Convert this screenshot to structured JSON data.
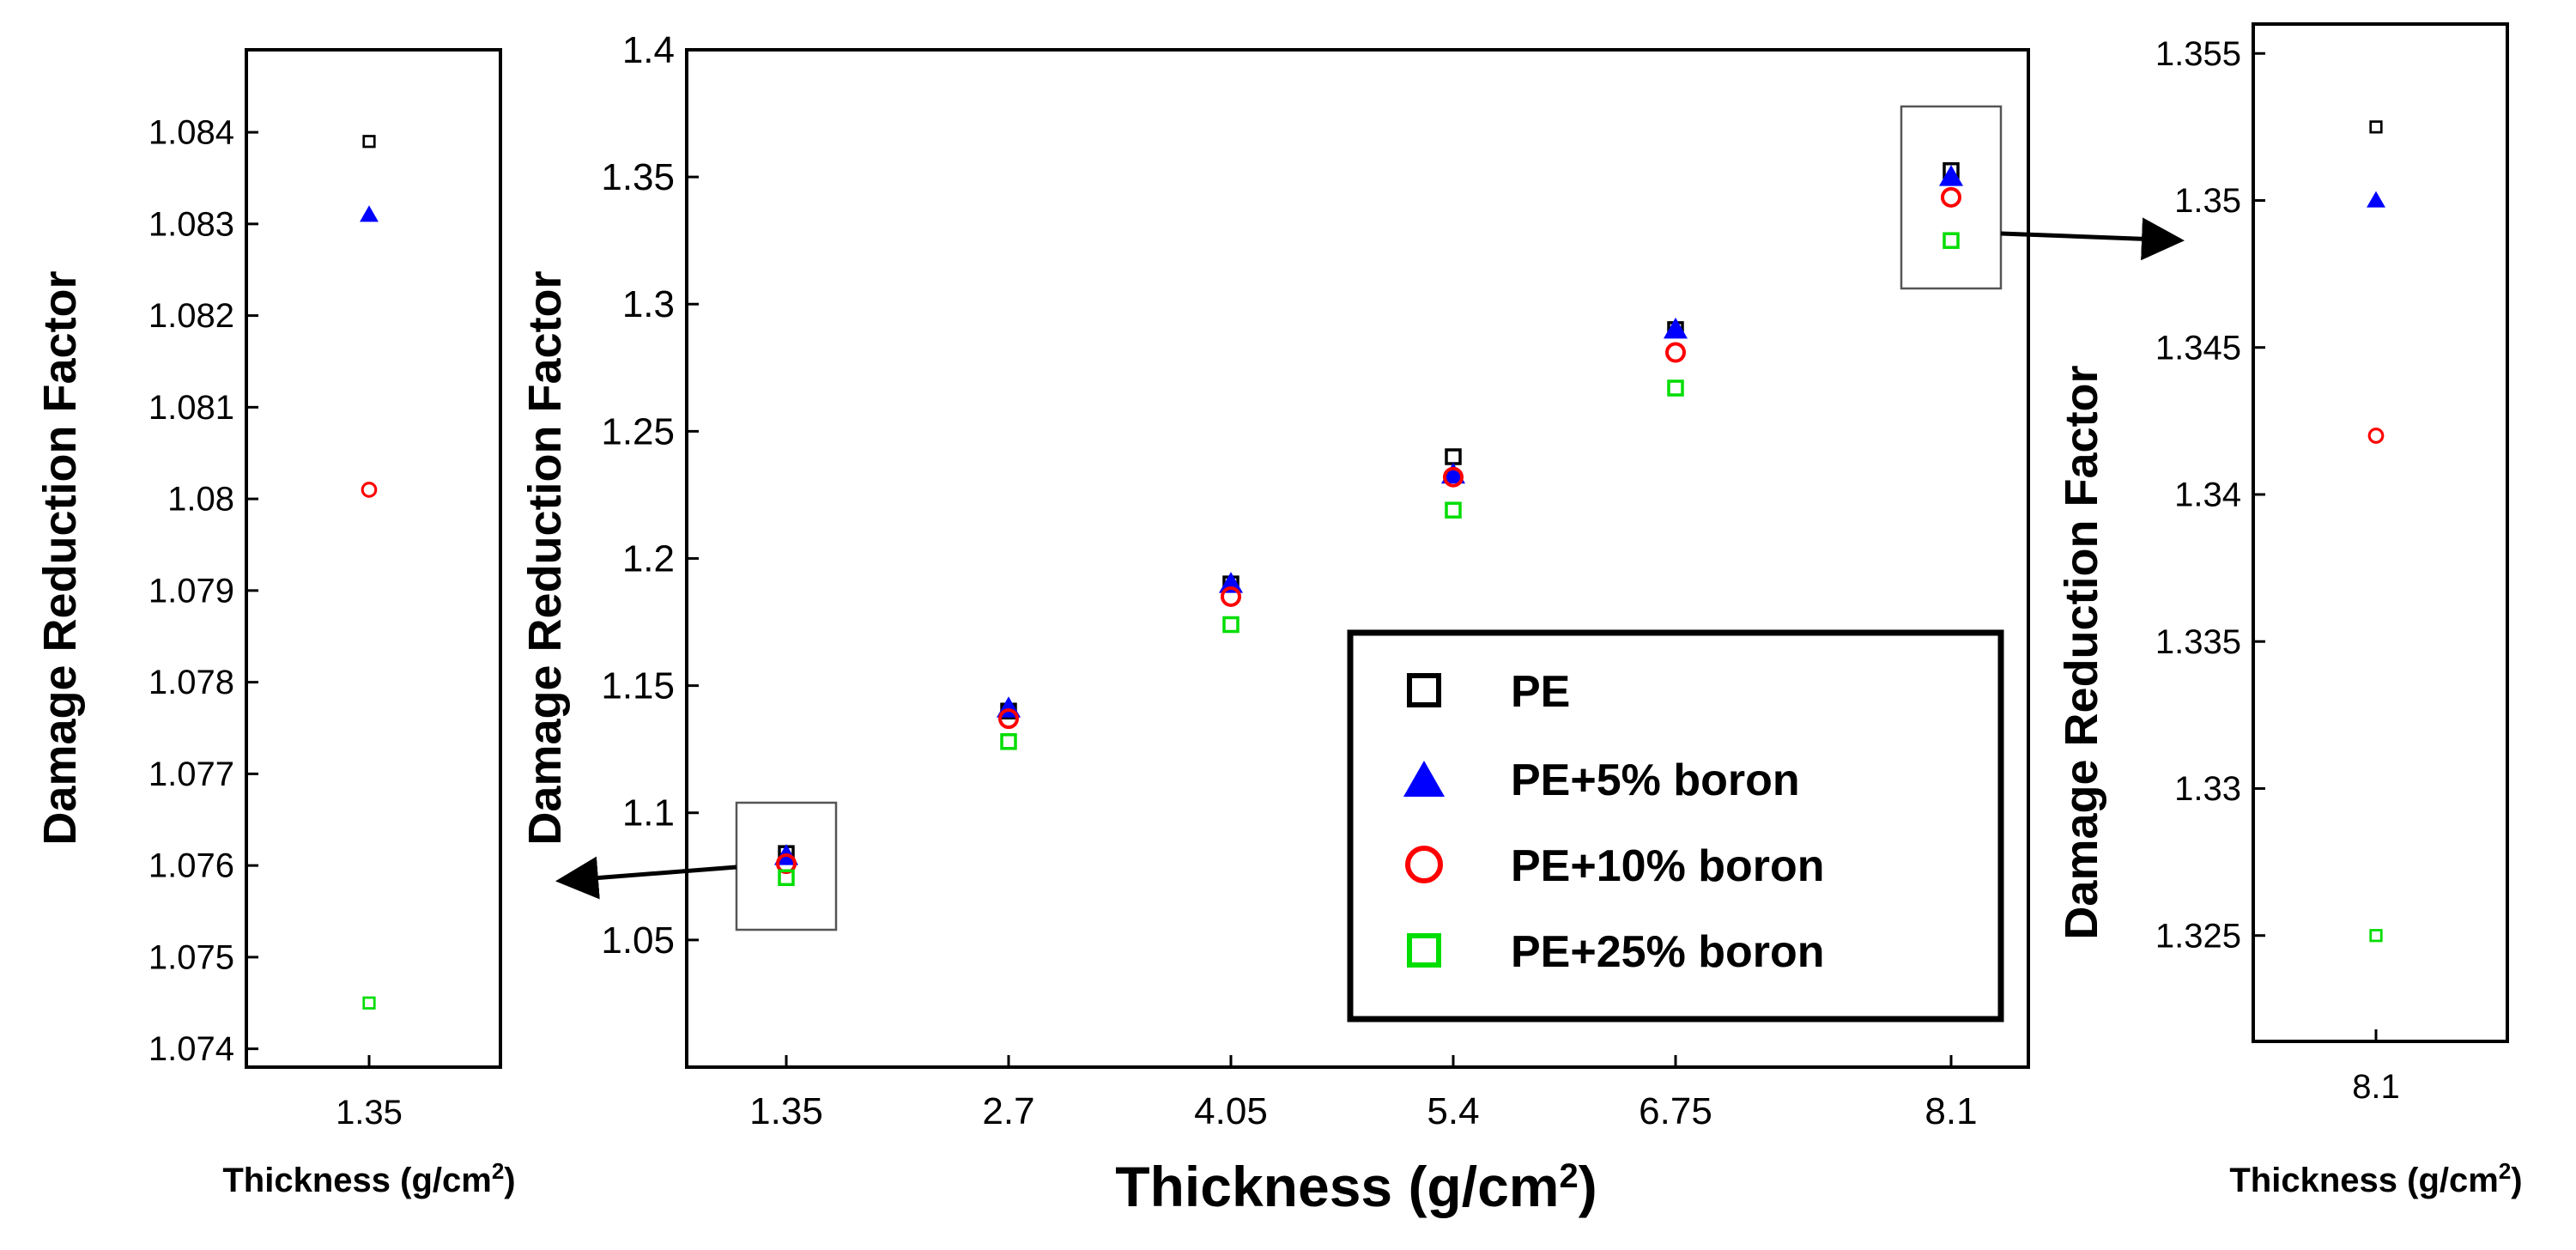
{
  "chart_data": [
    {
      "id": "left-inset",
      "type": "scatter",
      "title": "",
      "xlabel": "Thickness (g/cm",
      "xlabel_sup": "2",
      "xlabel_close": ")",
      "ylabel": "Damage Reduction Factor",
      "categories": [
        "1.35"
      ],
      "ylim": [
        1.0738,
        1.0849
      ],
      "yticks": [
        "1.074",
        "1.075",
        "1.076",
        "1.077",
        "1.078",
        "1.079",
        "1.08",
        "1.081",
        "1.082",
        "1.083",
        "1.084"
      ],
      "series": [
        {
          "name": "PE",
          "values": [
            1.0839
          ]
        },
        {
          "name": "PE+5% boron",
          "values": [
            1.0831
          ]
        },
        {
          "name": "PE+10% boron",
          "values": [
            1.0801
          ]
        },
        {
          "name": "PE+25% boron",
          "values": [
            1.0745
          ]
        }
      ]
    },
    {
      "id": "main",
      "type": "scatter",
      "title": "",
      "xlabel": "Thickness (g/cm",
      "xlabel_sup": "2",
      "xlabel_close": ")",
      "ylabel": "Damage Reduction Factor",
      "categories": [
        "1.35",
        "2.7",
        "4.05",
        "5.4",
        "6.75",
        "8.1"
      ],
      "ylim": [
        1.0,
        1.4
      ],
      "yticks": [
        "1.05",
        "1.1",
        "1.15",
        "1.2",
        "1.25",
        "1.3",
        "1.35",
        "1.4"
      ],
      "series": [
        {
          "name": "PE",
          "values": [
            1.084,
            1.14,
            1.19,
            1.24,
            1.29,
            1.3525
          ]
        },
        {
          "name": "PE+5% boron",
          "values": [
            1.083,
            1.141,
            1.19,
            1.233,
            1.29,
            1.35
          ]
        },
        {
          "name": "PE+10% boron",
          "values": [
            1.08,
            1.137,
            1.185,
            1.232,
            1.281,
            1.342
          ]
        },
        {
          "name": "PE+25% boron",
          "values": [
            1.0745,
            1.128,
            1.174,
            1.219,
            1.267,
            1.325
          ]
        }
      ],
      "legend_position": "lower-right"
    },
    {
      "id": "right-inset",
      "type": "scatter",
      "title": "",
      "xlabel": "Thickness (g/cm",
      "xlabel_sup": "2",
      "xlabel_close": ")",
      "ylabel": "Damage Reduction Factor",
      "categories": [
        "8.1"
      ],
      "ylim": [
        1.3214,
        1.356
      ],
      "yticks": [
        "1.325",
        "1.33",
        "1.335",
        "1.34",
        "1.345",
        "1.35",
        "1.355"
      ],
      "series": [
        {
          "name": "PE",
          "values": [
            1.3525
          ]
        },
        {
          "name": "PE+5% boron",
          "values": [
            1.35
          ]
        },
        {
          "name": "PE+10% boron",
          "values": [
            1.342
          ]
        },
        {
          "name": "PE+25% boron",
          "values": [
            1.325
          ]
        }
      ]
    }
  ],
  "legend": [
    {
      "label": "PE",
      "marker": "square",
      "color": "#000000"
    },
    {
      "label": "PE+5% boron",
      "marker": "triangle",
      "color": "#0000ff"
    },
    {
      "label": "PE+10% boron",
      "marker": "circle",
      "color": "#ff0000"
    },
    {
      "label": "PE+25% boron",
      "marker": "square",
      "color": "#00dd00"
    }
  ],
  "series_styles": [
    {
      "marker": "square",
      "color": "#000000"
    },
    {
      "marker": "triangle",
      "color": "#0000ff"
    },
    {
      "marker": "circle",
      "color": "#ff0000"
    },
    {
      "marker": "square",
      "color": "#00dd00"
    }
  ]
}
